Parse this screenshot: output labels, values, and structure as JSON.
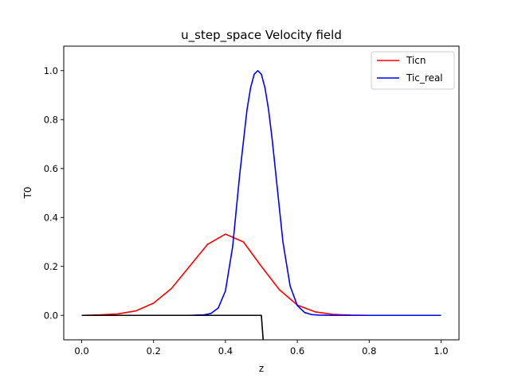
{
  "chart_data": {
    "type": "line",
    "title": "u_step_space Velocity field",
    "xlabel": "z",
    "ylabel": "T0",
    "xlim": [
      -0.05,
      1.05
    ],
    "ylim": [
      -0.1,
      1.1
    ],
    "xticks": [
      0.0,
      0.2,
      0.4,
      0.6,
      0.8,
      1.0
    ],
    "xtick_labels": [
      "0.0",
      "0.2",
      "0.4",
      "0.6",
      "0.8",
      "1.0"
    ],
    "yticks": [
      0.0,
      0.2,
      0.4,
      0.6,
      0.8,
      1.0
    ],
    "ytick_labels": [
      "0.0",
      "0.2",
      "0.4",
      "0.6",
      "0.8",
      "1.0"
    ],
    "grid": false,
    "legend": {
      "placement": "top-right"
    },
    "series": [
      {
        "name": "Ticn",
        "color": "#ff0000",
        "x": [
          0.0,
          0.05,
          0.1,
          0.15,
          0.2,
          0.25,
          0.3,
          0.35,
          0.4,
          0.45,
          0.5,
          0.55,
          0.6,
          0.65,
          0.7,
          0.75,
          0.8,
          0.9,
          1.0
        ],
        "y": [
          0.0,
          0.002,
          0.006,
          0.018,
          0.05,
          0.11,
          0.2,
          0.29,
          0.332,
          0.3,
          0.2,
          0.105,
          0.042,
          0.014,
          0.004,
          0.001,
          0.0,
          0.0,
          0.0
        ]
      },
      {
        "name": "Tic_real",
        "color": "#0000ff",
        "x": [
          0.0,
          0.3,
          0.34,
          0.36,
          0.38,
          0.4,
          0.42,
          0.44,
          0.46,
          0.47,
          0.48,
          0.49,
          0.5,
          0.51,
          0.52,
          0.53,
          0.54,
          0.56,
          0.58,
          0.6,
          0.62,
          0.64,
          0.66,
          0.7,
          1.0
        ],
        "y": [
          0.0,
          0.0,
          0.002,
          0.008,
          0.03,
          0.1,
          0.28,
          0.58,
          0.84,
          0.93,
          0.985,
          1.0,
          0.985,
          0.93,
          0.84,
          0.72,
          0.58,
          0.3,
          0.12,
          0.04,
          0.012,
          0.003,
          0.001,
          0.0,
          0.0
        ]
      },
      {
        "color": "#000000",
        "x": [
          0.0,
          0.5,
          0.505
        ],
        "y": [
          0.0,
          0.0,
          -0.1
        ]
      }
    ]
  }
}
